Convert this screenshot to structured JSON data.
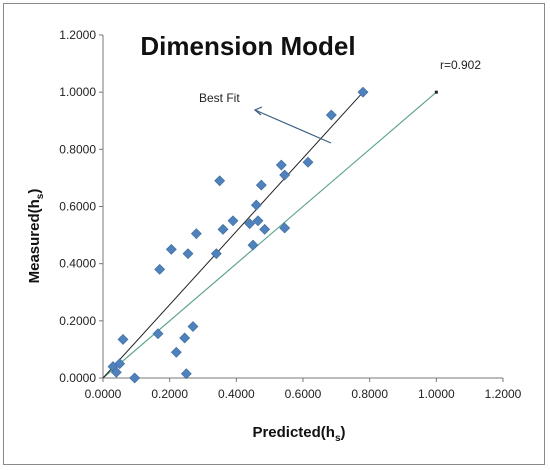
{
  "chart_data": {
    "type": "scatter",
    "title": "Dimension Model",
    "xlabel": "Predicted(hs)",
    "ylabel": "Measured(hs)",
    "xlim": [
      0,
      1.2
    ],
    "ylim": [
      0,
      1.2
    ],
    "xticks": [
      "0.0000",
      "0.2000",
      "0.4000",
      "0.6000",
      "0.8000",
      "1.0000",
      "1.2000"
    ],
    "yticks": [
      "0.0000",
      "0.2000",
      "0.4000",
      "0.6000",
      "0.8000",
      "1.0000",
      "1.2000"
    ],
    "grid": false,
    "marker_color": "#4f81bd",
    "points": [
      {
        "x": 0.03,
        "y": 0.04
      },
      {
        "x": 0.04,
        "y": 0.02
      },
      {
        "x": 0.05,
        "y": 0.05
      },
      {
        "x": 0.06,
        "y": 0.135
      },
      {
        "x": 0.095,
        "y": 0.0
      },
      {
        "x": 0.165,
        "y": 0.155
      },
      {
        "x": 0.17,
        "y": 0.38
      },
      {
        "x": 0.205,
        "y": 0.45
      },
      {
        "x": 0.22,
        "y": 0.09
      },
      {
        "x": 0.245,
        "y": 0.14
      },
      {
        "x": 0.25,
        "y": 0.015
      },
      {
        "x": 0.255,
        "y": 0.435
      },
      {
        "x": 0.27,
        "y": 0.18
      },
      {
        "x": 0.28,
        "y": 0.505
      },
      {
        "x": 0.34,
        "y": 0.435
      },
      {
        "x": 0.35,
        "y": 0.69
      },
      {
        "x": 0.36,
        "y": 0.52
      },
      {
        "x": 0.39,
        "y": 0.55
      },
      {
        "x": 0.44,
        "y": 0.54
      },
      {
        "x": 0.45,
        "y": 0.465
      },
      {
        "x": 0.46,
        "y": 0.605
      },
      {
        "x": 0.465,
        "y": 0.55
      },
      {
        "x": 0.475,
        "y": 0.675
      },
      {
        "x": 0.485,
        "y": 0.52
      },
      {
        "x": 0.535,
        "y": 0.745
      },
      {
        "x": 0.545,
        "y": 0.71
      },
      {
        "x": 0.545,
        "y": 0.525
      },
      {
        "x": 0.615,
        "y": 0.755
      },
      {
        "x": 0.685,
        "y": 0.92
      },
      {
        "x": 0.78,
        "y": 1.0
      }
    ],
    "best_fit_line": {
      "from": [
        0.0,
        0.0
      ],
      "to": [
        0.78,
        1.0
      ],
      "color": "#222222"
    },
    "reference_line": {
      "from": [
        0.0,
        0.0
      ],
      "to": [
        1.0,
        1.0
      ],
      "color": "#5fa58f"
    },
    "annotations": {
      "best_fit": "Best Fit",
      "r_value": "r=0.902"
    }
  }
}
